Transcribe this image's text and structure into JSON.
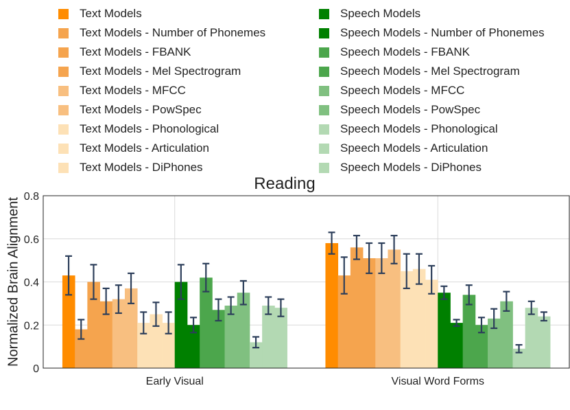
{
  "chart_data": {
    "type": "bar",
    "title": "Reading",
    "ylabel": "Normalized Brain Alignment",
    "xlabel": "",
    "ylim": [
      0,
      0.8
    ],
    "yticks": [
      "0",
      "0.2",
      "0.4",
      "0.6",
      "0.8"
    ],
    "grid": true,
    "categories": [
      "Early Visual",
      "Visual Word Forms"
    ],
    "series": [
      {
        "name": "Text Models",
        "color": "#ff8c00",
        "values": [
          0.43,
          0.58
        ],
        "err": [
          0.09,
          0.05
        ]
      },
      {
        "name": "Text Models - Number of Phonemes",
        "color": "#f5a44e",
        "values": [
          0.18,
          0.43
        ],
        "err": [
          0.045,
          0.085
        ]
      },
      {
        "name": "Text Models - FBANK",
        "color": "#f5a44e",
        "values": [
          0.4,
          0.56
        ],
        "err": [
          0.08,
          0.055
        ]
      },
      {
        "name": "Text Models - Mel Spectrogram",
        "color": "#f5a44e",
        "values": [
          0.31,
          0.51
        ],
        "err": [
          0.06,
          0.07
        ]
      },
      {
        "name": "Text Models - MFCC",
        "color": "#f8bf80",
        "values": [
          0.32,
          0.51
        ],
        "err": [
          0.065,
          0.07
        ]
      },
      {
        "name": "Text Models - PowSpec",
        "color": "#f8bf80",
        "values": [
          0.37,
          0.55
        ],
        "err": [
          0.07,
          0.065
        ]
      },
      {
        "name": "Text Models - Phonological",
        "color": "#fde1b6",
        "values": [
          0.21,
          0.45
        ],
        "err": [
          0.05,
          0.08
        ]
      },
      {
        "name": "Text Models - Articulation",
        "color": "#fde1b6",
        "values": [
          0.25,
          0.46
        ],
        "err": [
          0.055,
          0.07
        ]
      },
      {
        "name": "Text Models - DiPhones",
        "color": "#fde1b6",
        "values": [
          0.21,
          0.41
        ],
        "err": [
          0.05,
          0.065
        ]
      },
      {
        "name": "Speech Models",
        "color": "#008000",
        "values": [
          0.4,
          0.35
        ],
        "err": [
          0.08,
          0.03
        ]
      },
      {
        "name": "Speech Models - Number of Phonemes",
        "color": "#008000",
        "values": [
          0.2,
          0.21
        ],
        "err": [
          0.035,
          0.015
        ]
      },
      {
        "name": "Speech Models - FBANK",
        "color": "#4ca64c",
        "values": [
          0.42,
          0.34
        ],
        "err": [
          0.065,
          0.045
        ]
      },
      {
        "name": "Speech Models - Mel Spectrogram",
        "color": "#4ca64c",
        "values": [
          0.27,
          0.2
        ],
        "err": [
          0.05,
          0.035
        ]
      },
      {
        "name": "Speech Models - MFCC",
        "color": "#80c080",
        "values": [
          0.29,
          0.23
        ],
        "err": [
          0.04,
          0.045
        ]
      },
      {
        "name": "Speech Models - PowSpec",
        "color": "#80c080",
        "values": [
          0.35,
          0.31
        ],
        "err": [
          0.055,
          0.045
        ]
      },
      {
        "name": "Speech Models - Phonological",
        "color": "#b3d9b3",
        "values": [
          0.12,
          0.09
        ],
        "err": [
          0.025,
          0.018
        ]
      },
      {
        "name": "Speech Models - Articulation",
        "color": "#b3d9b3",
        "values": [
          0.29,
          0.28
        ],
        "err": [
          0.04,
          0.03
        ]
      },
      {
        "name": "Speech Models - DiPhones",
        "color": "#b3d9b3",
        "values": [
          0.28,
          0.24
        ],
        "err": [
          0.04,
          0.02
        ]
      }
    ],
    "error_bar_color": "#2c3e5a",
    "legend_position": "top"
  }
}
